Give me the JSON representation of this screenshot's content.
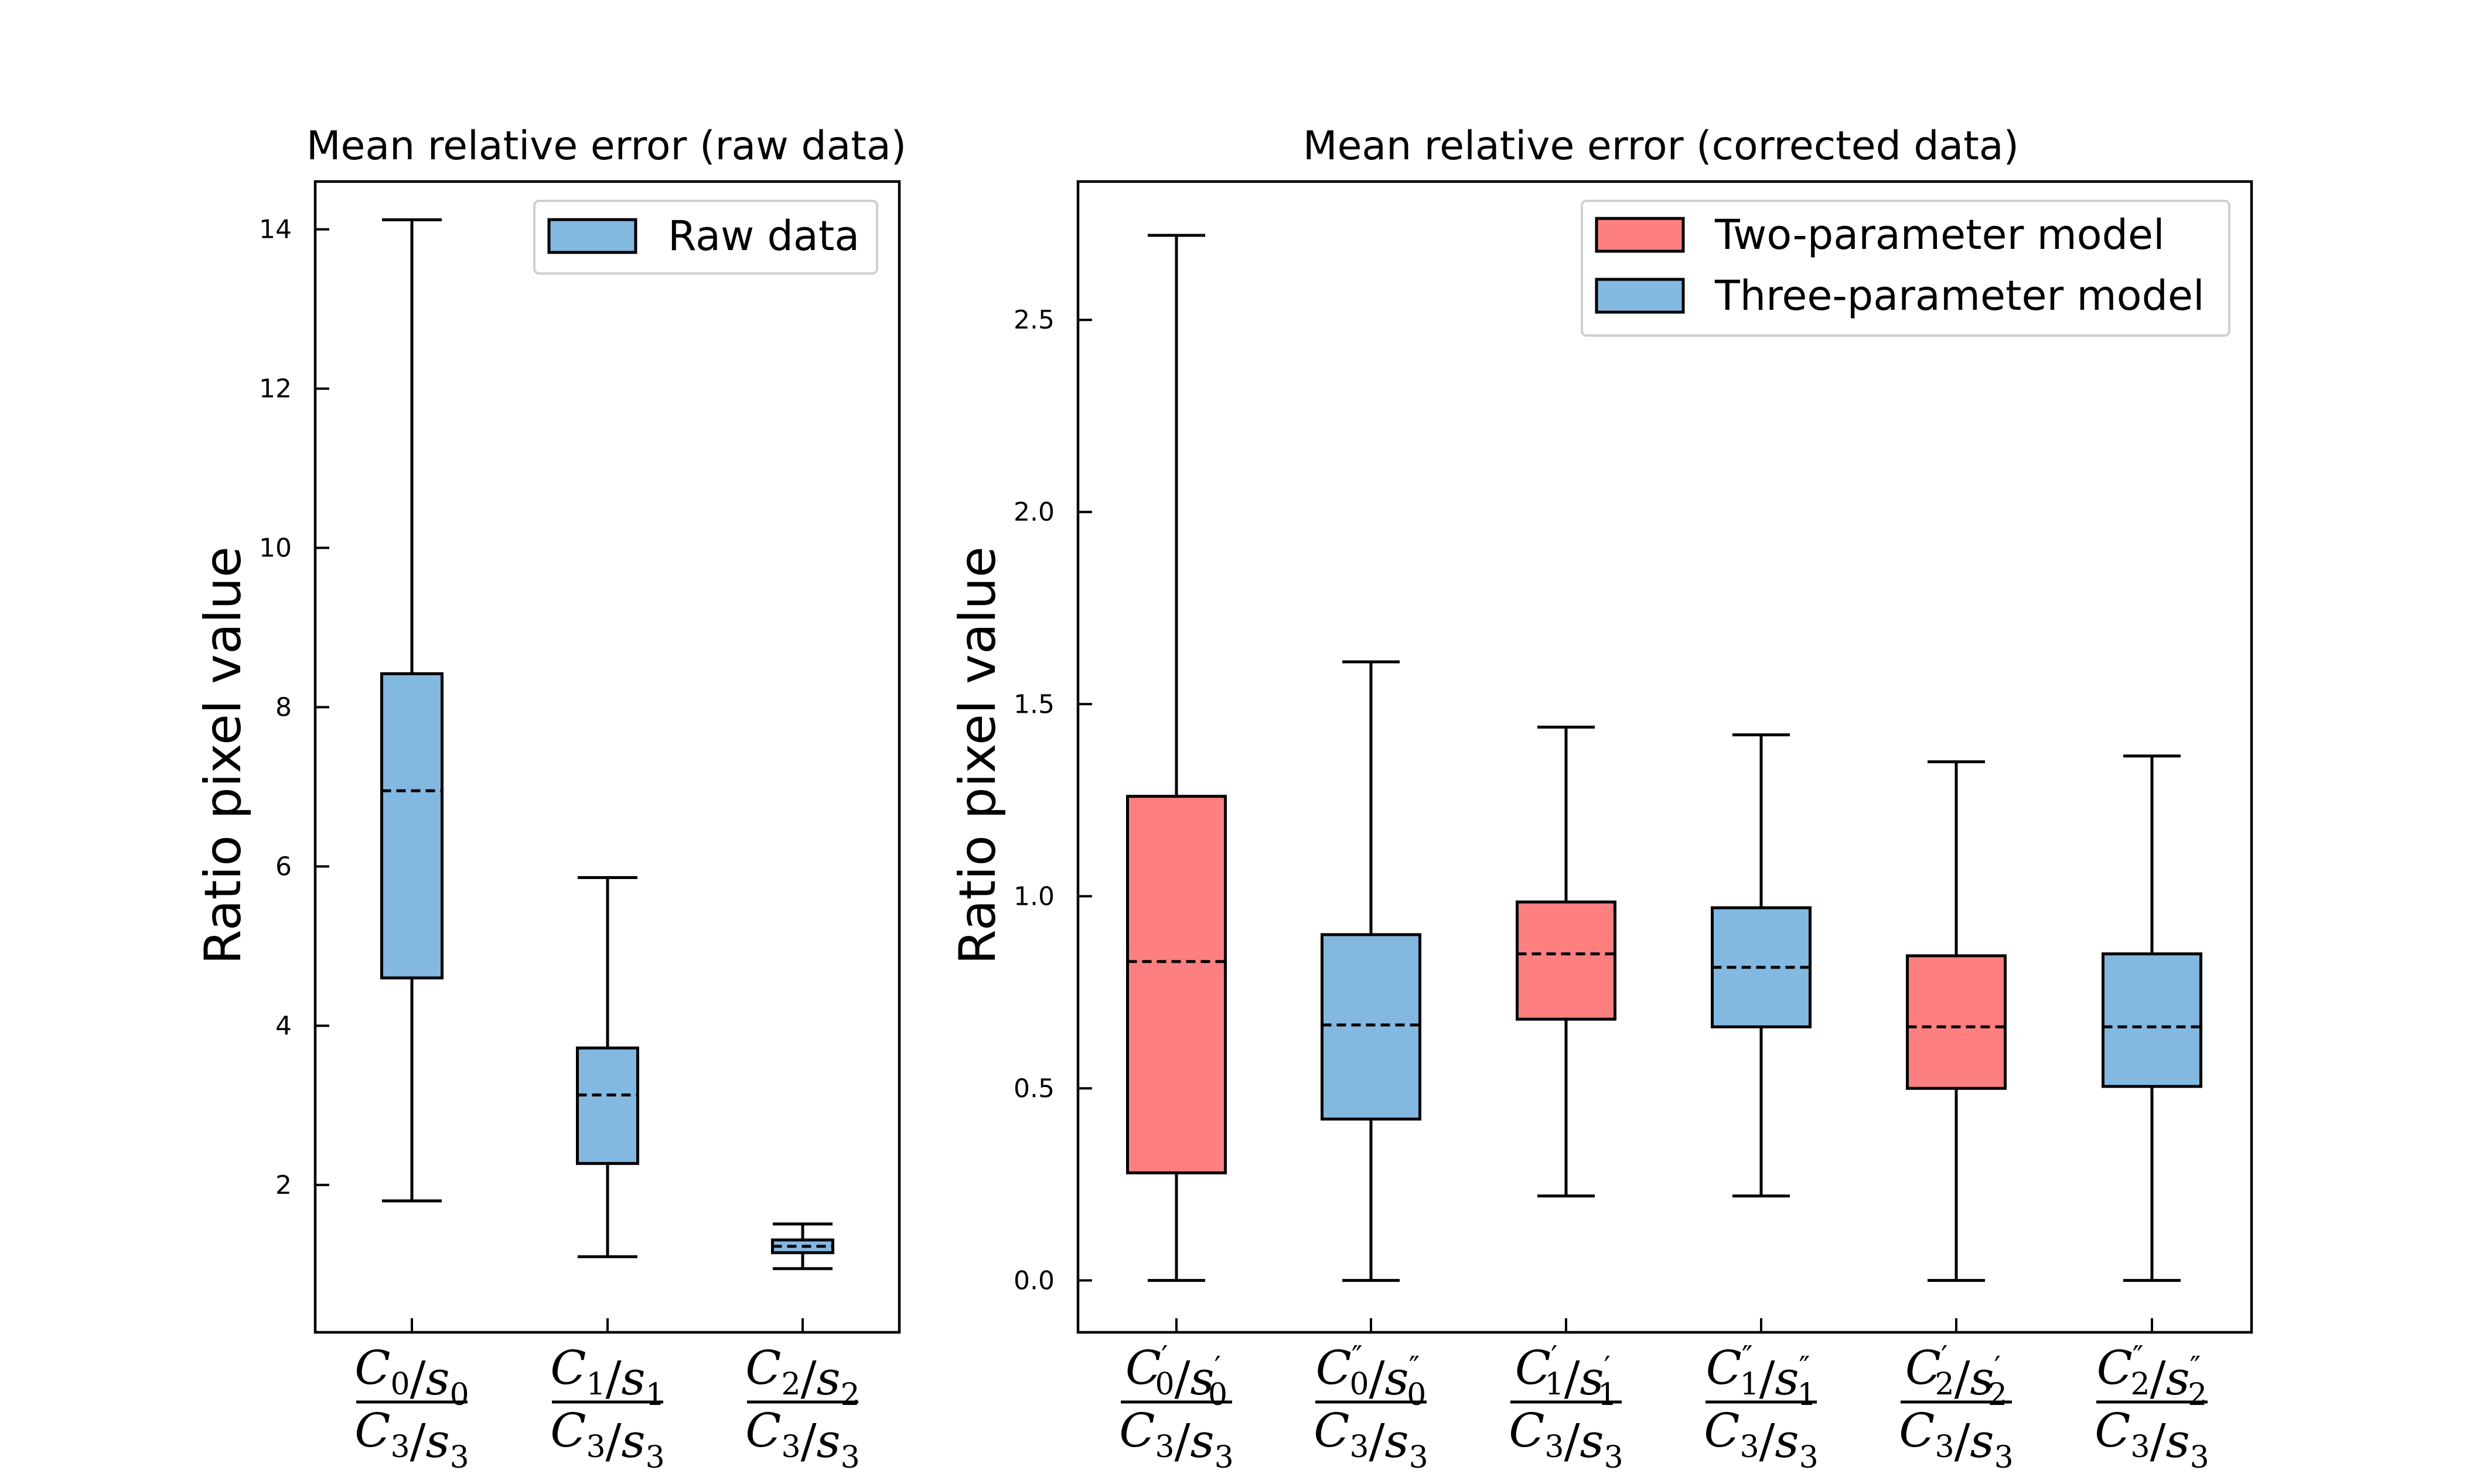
{
  "colors": {
    "blue": "#83b8e0",
    "red": "#fd7f7f",
    "line": "#000000"
  },
  "chart_data": [
    {
      "type": "box",
      "title": "Mean relative error (raw data)",
      "ylabel": "Ratio pixel value",
      "xlabel": "",
      "ylim": [
        0.15,
        14.6
      ],
      "yticks": [
        2,
        4,
        6,
        8,
        10,
        12,
        14
      ],
      "ytick_labels": [
        "2",
        "4",
        "6",
        "8",
        "10",
        "12",
        "14"
      ],
      "legend": {
        "position": "top-right",
        "entries": [
          {
            "label": "Raw data",
            "color": "#83b8e0"
          }
        ]
      },
      "boxes": [
        {
          "label": {
            "num": "C_0/s_0",
            "den": "C_3/s_3"
          },
          "whislo": 1.8,
          "q1": 4.6,
          "mean": 6.95,
          "q3": 8.42,
          "whishi": 14.12,
          "color": "#83b8e0"
        },
        {
          "label": {
            "num": "C_1/s_1",
            "den": "C_3/s_3"
          },
          "whislo": 1.1,
          "q1": 2.27,
          "mean": 3.13,
          "q3": 3.72,
          "whishi": 5.86,
          "color": "#83b8e0"
        },
        {
          "label": {
            "num": "C_2/s_2",
            "den": "C_3/s_3"
          },
          "whislo": 0.95,
          "q1": 1.15,
          "mean": 1.23,
          "q3": 1.31,
          "whishi": 1.51,
          "color": "#83b8e0"
        }
      ]
    },
    {
      "type": "box",
      "title": "Mean relative error (corrected data)",
      "ylabel": "Ratio pixel value",
      "xlabel": "",
      "ylim": [
        -0.135,
        2.86
      ],
      "yticks": [
        0.0,
        0.5,
        1.0,
        1.5,
        2.0,
        2.5
      ],
      "ytick_labels": [
        "0.0",
        "0.5",
        "1.0",
        "1.5",
        "2.0",
        "2.5"
      ],
      "legend": {
        "position": "top-right",
        "entries": [
          {
            "label": "Two-parameter model",
            "color": "#fd7f7f"
          },
          {
            "label": "Three-parameter model",
            "color": "#83b8e0"
          }
        ]
      },
      "boxes": [
        {
          "label": {
            "num": "C'_0/s'_0",
            "den": "C_3/s_3"
          },
          "whislo": 0.0,
          "q1": 0.28,
          "mean": 0.83,
          "q3": 1.26,
          "whishi": 2.72,
          "color": "#fd7f7f"
        },
        {
          "label": {
            "num": "C''_0/s''_0",
            "den": "C_3/s_3"
          },
          "whislo": 0.0,
          "q1": 0.42,
          "mean": 0.665,
          "q3": 0.9,
          "whishi": 1.61,
          "color": "#83b8e0"
        },
        {
          "label": {
            "num": "C'_1/s'_1",
            "den": "C_3/s_3"
          },
          "whislo": 0.22,
          "q1": 0.68,
          "mean": 0.85,
          "q3": 0.985,
          "whishi": 1.44,
          "color": "#fd7f7f"
        },
        {
          "label": {
            "num": "C''_1/s''_1",
            "den": "C_3/s_3"
          },
          "whislo": 0.22,
          "q1": 0.66,
          "mean": 0.815,
          "q3": 0.97,
          "whishi": 1.42,
          "color": "#83b8e0"
        },
        {
          "label": {
            "num": "C'_2/s'_2",
            "den": "C_3/s_3"
          },
          "whislo": 0.0,
          "q1": 0.5,
          "mean": 0.66,
          "q3": 0.845,
          "whishi": 1.35,
          "color": "#fd7f7f"
        },
        {
          "label": {
            "num": "C''_2/s''_2",
            "den": "C_3/s_3"
          },
          "whislo": 0.0,
          "q1": 0.505,
          "mean": 0.66,
          "q3": 0.85,
          "whishi": 1.365,
          "color": "#83b8e0"
        }
      ]
    }
  ]
}
